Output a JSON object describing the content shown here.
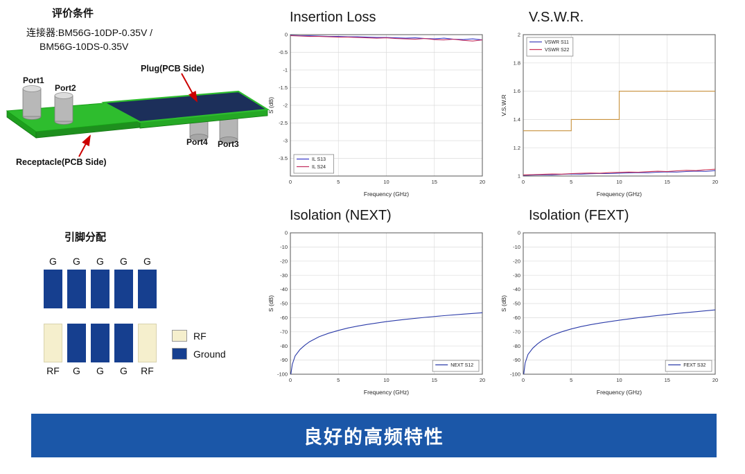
{
  "panel": {
    "eval_title": "评价条件",
    "connector_line1": "连接器:BM56G-10DP-0.35V /",
    "connector_line2": "BM56G-10DS-0.35V",
    "plug_label": "Plug(PCB Side)",
    "receptacle_label": "Receptacle(PCB Side)",
    "ports": {
      "p1": "Port1",
      "p2": "Port2",
      "p3": "Port3",
      "p4": "Port4"
    },
    "pin_title": "引脚分配",
    "pin_top_labels": [
      "G",
      "G",
      "G",
      "G",
      "G"
    ],
    "pin_bottom_labels": [
      "RF",
      "G",
      "G",
      "G",
      "RF"
    ],
    "legend_rf_label": "RF",
    "legend_ground_label": "Ground",
    "colors": {
      "ground_blue": "#163F8F",
      "rf_cream": "#F5EFCD",
      "banner_blue": "#1B57A8",
      "arrow_red": "#CC0000",
      "pcb_green": "#2EBD2E"
    }
  },
  "banner": {
    "text": "良好的高频特性"
  },
  "chart_data": [
    {
      "id": "insertion-loss",
      "type": "line",
      "title": "Insertion Loss",
      "xlabel": "Frequency (GHz)",
      "ylabel": "S (dB)",
      "xlim": [
        0,
        20
      ],
      "ylim": [
        -4,
        0
      ],
      "xticks": [
        0,
        5,
        10,
        15,
        20
      ],
      "yticks": [
        0,
        -0.5,
        -1,
        -1.5,
        -2,
        -2.5,
        -3,
        -3.5
      ],
      "grid": true,
      "legend_pos": "bl",
      "series": [
        {
          "name": "IL S13",
          "color": "#3A3AC8",
          "x": [
            0,
            1,
            2,
            3,
            4,
            5,
            6,
            7,
            8,
            9,
            10,
            11,
            12,
            13,
            14,
            15,
            16,
            17,
            18,
            19,
            20
          ],
          "y": [
            -0.02,
            -0.03,
            -0.03,
            -0.04,
            -0.05,
            -0.05,
            -0.06,
            -0.06,
            -0.07,
            -0.08,
            -0.08,
            -0.09,
            -0.1,
            -0.09,
            -0.11,
            -0.12,
            -0.1,
            -0.13,
            -0.14,
            -0.12,
            -0.15
          ]
        },
        {
          "name": "IL S24",
          "color": "#C23060",
          "x": [
            0,
            1,
            2,
            3,
            4,
            5,
            6,
            7,
            8,
            9,
            10,
            11,
            12,
            13,
            14,
            15,
            16,
            17,
            18,
            19,
            20
          ],
          "y": [
            -0.03,
            -0.04,
            -0.05,
            -0.05,
            -0.06,
            -0.07,
            -0.07,
            -0.08,
            -0.09,
            -0.1,
            -0.09,
            -0.11,
            -0.12,
            -0.13,
            -0.11,
            -0.14,
            -0.15,
            -0.13,
            -0.16,
            -0.18,
            -0.15
          ]
        }
      ]
    },
    {
      "id": "vswr",
      "type": "line",
      "title": "V.S.W.R.",
      "xlabel": "Frequency (GHz)",
      "ylabel": "V.S.W.R",
      "xlim": [
        0,
        20
      ],
      "ylim": [
        1,
        2
      ],
      "xticks": [
        0,
        5,
        10,
        15,
        20
      ],
      "yticks": [
        1,
        1.2,
        1.4,
        1.6,
        1.8,
        2
      ],
      "grid": true,
      "legend_pos": "tl",
      "series": [
        {
          "name": "VSWR S11",
          "color": "#4444BB",
          "x": [
            0,
            1,
            2,
            3,
            4,
            5,
            6,
            7,
            8,
            9,
            10,
            11,
            12,
            13,
            14,
            15,
            16,
            17,
            18,
            19,
            20
          ],
          "y": [
            1.005,
            1.007,
            1.009,
            1.008,
            1.012,
            1.014,
            1.013,
            1.016,
            1.018,
            1.017,
            1.02,
            1.022,
            1.024,
            1.023,
            1.027,
            1.029,
            1.028,
            1.032,
            1.035,
            1.033,
            1.038
          ]
        },
        {
          "name": "VSWR S22",
          "color": "#CC3355",
          "x": [
            0,
            1,
            2,
            3,
            4,
            5,
            6,
            7,
            8,
            9,
            10,
            11,
            12,
            13,
            14,
            15,
            16,
            17,
            18,
            19,
            20
          ],
          "y": [
            1.008,
            1.01,
            1.012,
            1.014,
            1.013,
            1.017,
            1.019,
            1.021,
            1.02,
            1.024,
            1.026,
            1.028,
            1.027,
            1.031,
            1.034,
            1.032,
            1.037,
            1.04,
            1.038,
            1.044,
            1.048
          ]
        },
        {
          "name": "limit_step",
          "in_legend": false,
          "color": "#C8913C",
          "x": [
            0,
            5,
            5,
            10,
            10,
            20
          ],
          "y": [
            1.32,
            1.32,
            1.4,
            1.4,
            1.6,
            1.6
          ]
        }
      ]
    },
    {
      "id": "isolation-next",
      "type": "line",
      "title": "Isolation (NEXT)",
      "xlabel": "Frequency (GHz)",
      "ylabel": "S (dB)",
      "xlim": [
        0,
        20
      ],
      "ylim": [
        -100,
        0
      ],
      "xticks": [
        0,
        5,
        10,
        15,
        20
      ],
      "yticks": [
        0,
        -10,
        -20,
        -30,
        -40,
        -50,
        -60,
        -70,
        -80,
        -90,
        -100
      ],
      "grid": true,
      "legend_pos": "br",
      "series": [
        {
          "name": "NEXT S12",
          "color": "#2A3AA8",
          "x": [
            0.05,
            0.2,
            0.5,
            1,
            1.5,
            2,
            3,
            4,
            5,
            6,
            7,
            8,
            10,
            12,
            14,
            16,
            18,
            20
          ],
          "y": [
            -100,
            -93,
            -87,
            -82.5,
            -79.5,
            -77,
            -73.5,
            -71,
            -69,
            -67.3,
            -66,
            -64.8,
            -62.8,
            -61.2,
            -59.8,
            -58.6,
            -57.5,
            -56.5
          ]
        }
      ]
    },
    {
      "id": "isolation-fext",
      "type": "line",
      "title": "Isolation (FEXT)",
      "xlabel": "Frequency (GHz)",
      "ylabel": "S (dB)",
      "xlim": [
        0,
        20
      ],
      "ylim": [
        -100,
        0
      ],
      "xticks": [
        0,
        5,
        10,
        15,
        20
      ],
      "yticks": [
        0,
        -10,
        -20,
        -30,
        -40,
        -50,
        -60,
        -70,
        -80,
        -90,
        -100
      ],
      "grid": true,
      "legend_pos": "br",
      "series": [
        {
          "name": "FEXT S32",
          "color": "#2A3AA8",
          "x": [
            0.05,
            0.2,
            0.5,
            1,
            1.5,
            2,
            3,
            4,
            5,
            6,
            7,
            8,
            10,
            12,
            14,
            16,
            18,
            20
          ],
          "y": [
            -100,
            -92,
            -86,
            -81.5,
            -78.5,
            -76,
            -72.5,
            -70,
            -68,
            -66.3,
            -65,
            -63.8,
            -61.8,
            -60,
            -58.5,
            -57,
            -55.8,
            -54.5
          ]
        }
      ]
    }
  ]
}
